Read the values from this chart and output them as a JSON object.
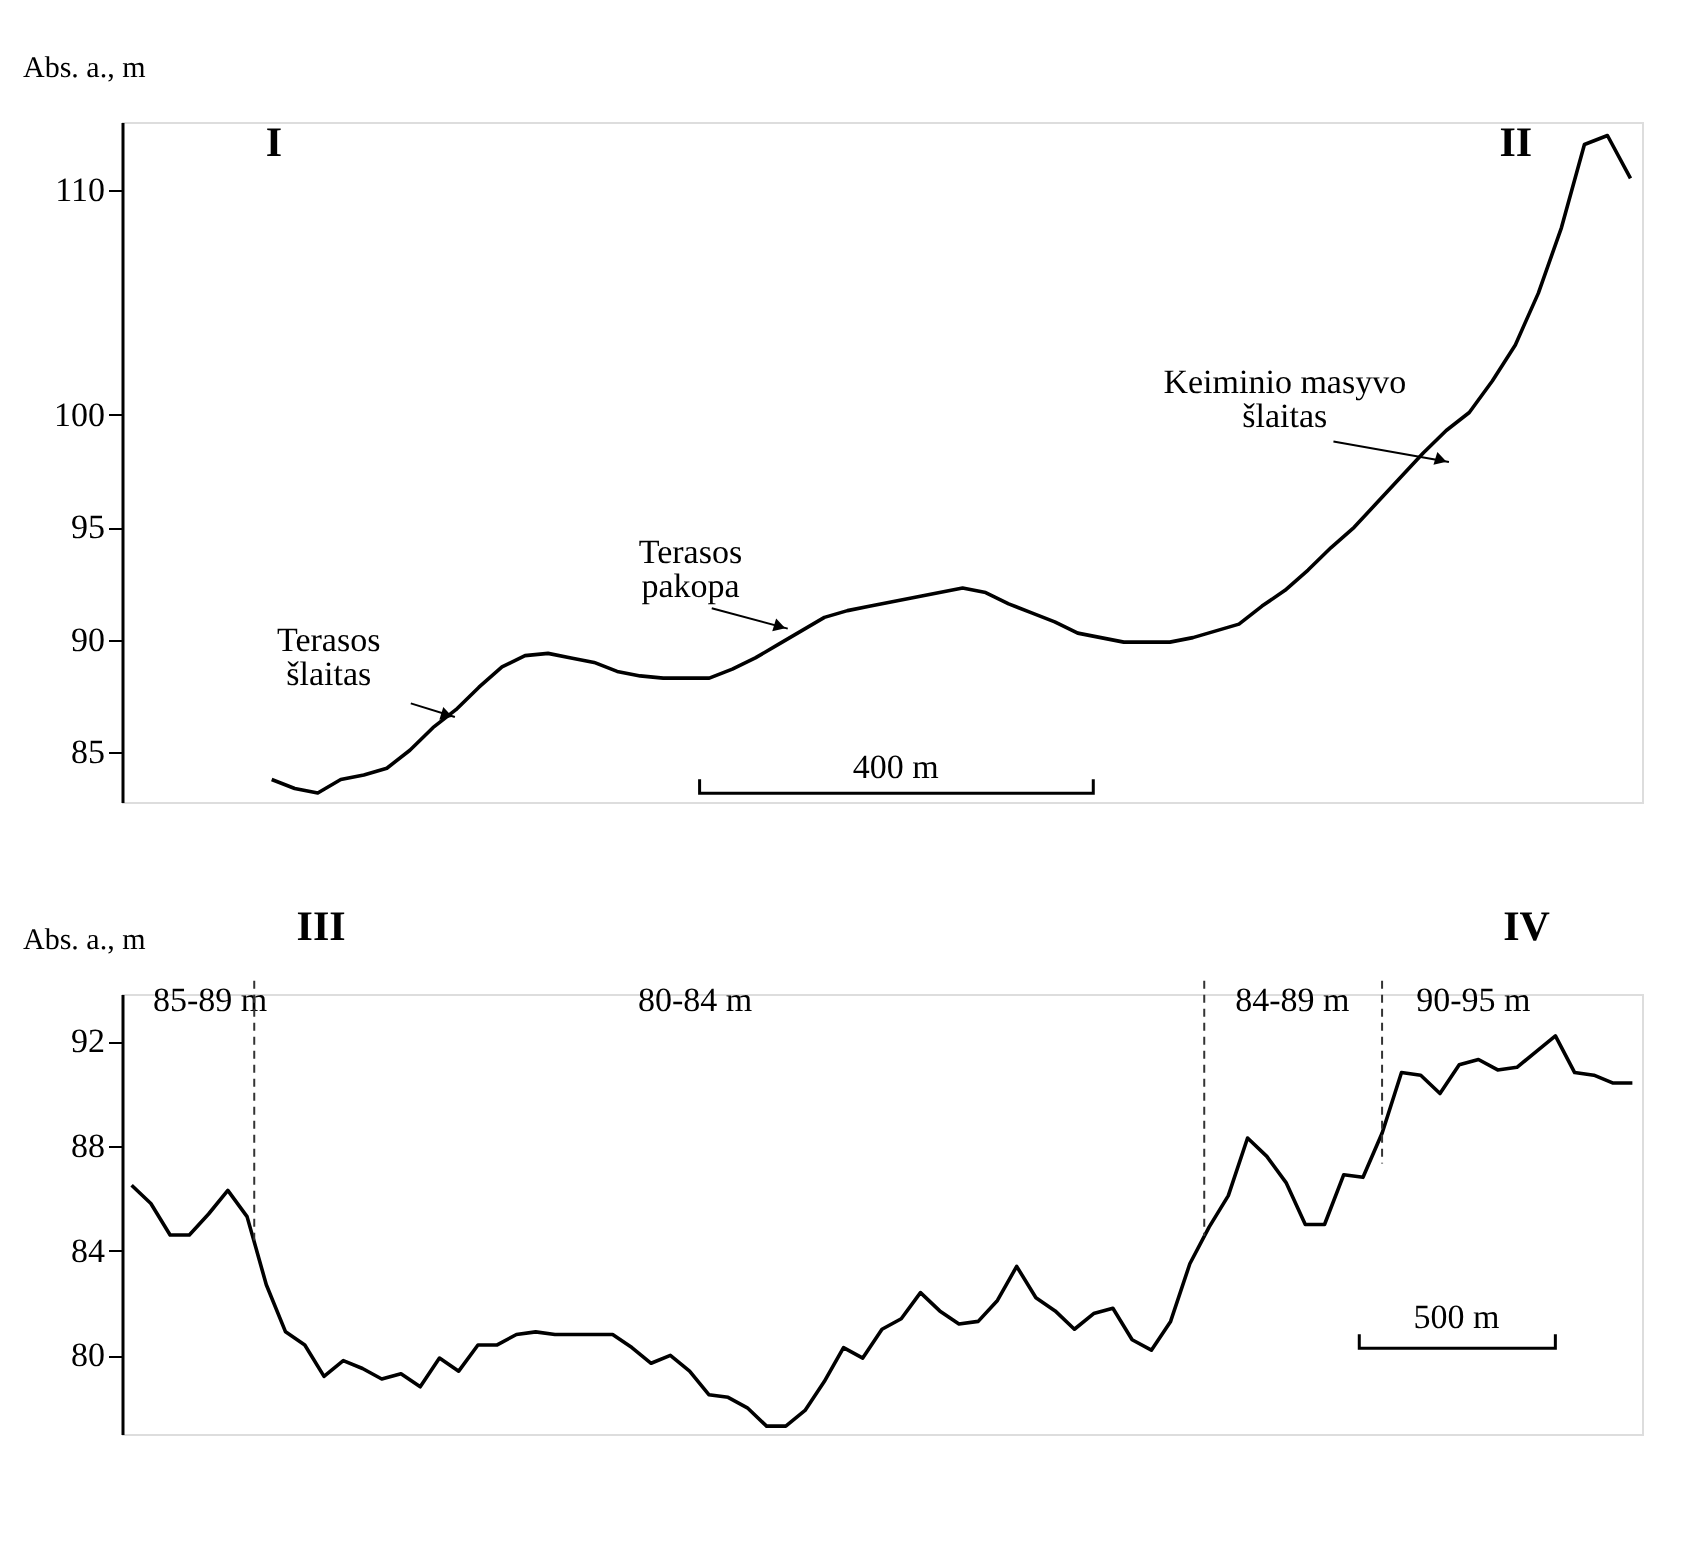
{
  "chart_data": [
    {
      "type": "line",
      "ylabel": "Abs. a., m",
      "ylim": [
        82.8,
        113
      ],
      "yticks": [
        85,
        90,
        95,
        100,
        110
      ],
      "tick_labels": "y",
      "categories": [
        null,
        null,
        null,
        null,
        null,
        null,
        null,
        null,
        null,
        null,
        null,
        null,
        null,
        null,
        null,
        null,
        null,
        null,
        null,
        null,
        null,
        null,
        null,
        null,
        null,
        null,
        null,
        null,
        null,
        null,
        null,
        null,
        null,
        null,
        null,
        null,
        null,
        null,
        null,
        null,
        null,
        null,
        null,
        null,
        null,
        null,
        null,
        null,
        null,
        null,
        null,
        null,
        null,
        null,
        null,
        null,
        null,
        null,
        null,
        null,
        null,
        null,
        null,
        null,
        null,
        null
      ],
      "series": [
        {
          "color": "#000000",
          "values": [
            null,
            null,
            null,
            null,
            null,
            null,
            83.8,
            83.4,
            83.2,
            83.8,
            84.0,
            84.3,
            85.1,
            86.1,
            86.9,
            87.9,
            88.8,
            89.3,
            89.4,
            89.2,
            89.0,
            88.6,
            88.4,
            88.3,
            88.3,
            88.3,
            88.7,
            89.2,
            89.8,
            90.4,
            91.0,
            91.3,
            91.5,
            91.7,
            91.9,
            92.1,
            92.3,
            92.1,
            91.6,
            91.2,
            90.8,
            90.3,
            90.1,
            89.9,
            89.9,
            89.9,
            90.1,
            90.4,
            90.7,
            91.5,
            92.2,
            93.1,
            94.1,
            95.0,
            96.1,
            97.2,
            98.3,
            99.3,
            100.1,
            101.5,
            103.1,
            105.4,
            108.3,
            112.0,
            112.4,
            110.5
          ]
        }
      ],
      "annotations": [
        "I",
        "II",
        "400 m",
        "Terasos\nšlaitas",
        "Terasos\npakopa",
        "Keiminio masyvo\nšlaitas"
      ]
    },
    {
      "type": "line",
      "ylabel": "Abs. a., m",
      "ylim": [
        77,
        93.8
      ],
      "yticks": [
        80,
        84,
        88,
        92
      ],
      "tick_labels": "y",
      "categories": [
        null,
        null,
        null,
        null,
        null,
        null,
        null,
        null,
        null,
        null,
        null,
        null,
        null,
        null,
        null,
        null,
        null,
        null,
        null,
        null,
        null,
        null,
        null,
        null,
        null,
        null,
        null,
        null,
        null,
        null,
        null,
        null,
        null,
        null,
        null,
        null,
        null,
        null,
        null,
        null,
        null,
        null,
        null,
        null,
        null,
        null,
        null,
        null,
        null,
        null,
        null,
        null,
        null,
        null,
        null,
        null,
        null,
        null,
        null,
        null,
        null,
        null,
        null,
        null,
        null,
        null,
        null,
        null,
        null,
        null,
        null,
        null,
        null,
        null,
        null,
        null,
        null,
        null,
        null
      ],
      "series": [
        {
          "color": "#000000",
          "values": [
            86.5,
            85.8,
            84.6,
            84.6,
            85.4,
            86.3,
            85.3,
            82.7,
            80.9,
            80.4,
            79.2,
            79.8,
            79.5,
            79.1,
            79.3,
            78.8,
            79.9,
            79.4,
            80.4,
            80.4,
            80.8,
            80.9,
            80.8,
            80.8,
            80.8,
            80.8,
            80.3,
            79.7,
            80.0,
            79.4,
            78.5,
            78.4,
            78.0,
            77.3,
            77.3,
            77.9,
            79.0,
            80.3,
            79.9,
            81.0,
            81.4,
            82.4,
            81.7,
            81.2,
            81.3,
            82.1,
            83.4,
            82.2,
            81.7,
            81.0,
            81.6,
            81.8,
            80.6,
            80.2,
            81.3,
            83.5,
            84.9,
            86.1,
            88.3,
            87.6,
            86.6,
            85.0,
            85.0,
            86.9,
            86.8,
            88.5,
            90.8,
            90.7,
            90.0,
            91.1,
            91.3,
            90.9,
            91.0,
            91.6,
            92.2,
            90.8,
            90.7,
            90.4,
            90.4
          ]
        }
      ],
      "annotations": [
        "III",
        "IV",
        "500 m",
        "85-89 m",
        "80-84 m",
        "84-89 m",
        "90-95 m"
      ]
    }
  ]
}
